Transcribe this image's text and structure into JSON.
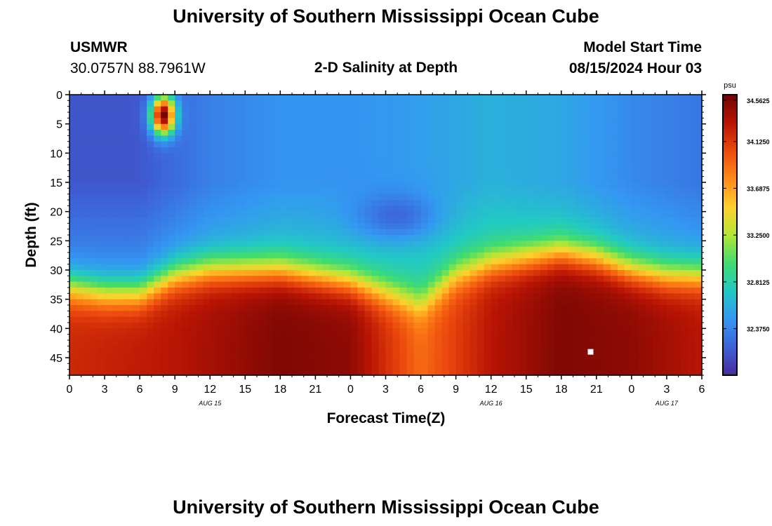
{
  "header": {
    "title": "University of Southern Mississippi Ocean Cube",
    "station": "USMWR",
    "coords": "30.0757N  88.7961W",
    "subtitle": "2-D Salinity at Depth",
    "model_start_label": "Model Start Time",
    "model_start_value": "08/15/2024 Hour 03"
  },
  "footer": {
    "title": "University of Southern Mississippi Ocean Cube"
  },
  "chart_data": {
    "type": "heatmap",
    "title": "2-D Salinity at Depth",
    "xlabel": "Forecast Time(Z)",
    "ylabel": "Depth (ft)",
    "x_tick_labels": [
      "0",
      "3",
      "6",
      "9",
      "12",
      "15",
      "18",
      "21",
      "0",
      "3",
      "6",
      "9",
      "12",
      "15",
      "18",
      "21",
      "0",
      "3",
      "6"
    ],
    "date_labels": [
      {
        "label": "AUG 15",
        "at_hour": 12
      },
      {
        "label": "AUG 16",
        "at_hour": 36
      },
      {
        "label": "AUG 17",
        "at_hour": 51
      }
    ],
    "xlim_hours": [
      0,
      54
    ],
    "y_ticks": [
      0,
      5,
      10,
      15,
      20,
      25,
      30,
      35,
      40,
      45
    ],
    "ylim": [
      0,
      48
    ],
    "y_inverted": true,
    "colorbar": {
      "unit": "psu",
      "min": 31.94,
      "max": 34.5625,
      "tick_labels": [
        "34.5625",
        "34.1250",
        "33.6875",
        "33.2500",
        "32.8125",
        "32.3750"
      ],
      "colors": [
        "#4a2a9c",
        "#3d62d8",
        "#3497f2",
        "#22c9c4",
        "#40dc70",
        "#b4e636",
        "#ffd02c",
        "#ff8a18",
        "#ec4a0e",
        "#b81404",
        "#6e0404"
      ]
    },
    "halocline_depth_ft": [
      {
        "hour": 0,
        "depth": 33
      },
      {
        "hour": 3,
        "depth": 34
      },
      {
        "hour": 6,
        "depth": 34
      },
      {
        "hour": 9,
        "depth": 31
      },
      {
        "hour": 12,
        "depth": 30
      },
      {
        "hour": 15,
        "depth": 30
      },
      {
        "hour": 18,
        "depth": 30
      },
      {
        "hour": 21,
        "depth": 31
      },
      {
        "hour": 24,
        "depth": 32
      },
      {
        "hour": 27,
        "depth": 34
      },
      {
        "hour": 30,
        "depth": 36
      },
      {
        "hour": 33,
        "depth": 31
      },
      {
        "hour": 36,
        "depth": 29
      },
      {
        "hour": 39,
        "depth": 28
      },
      {
        "hour": 42,
        "depth": 27
      },
      {
        "hour": 45,
        "depth": 28
      },
      {
        "hour": 48,
        "depth": 30
      },
      {
        "hour": 51,
        "depth": 31
      },
      {
        "hour": 54,
        "depth": 31
      }
    ],
    "surface_salinity_psu": [
      {
        "hour": 0,
        "psu": 32.15
      },
      {
        "hour": 6,
        "psu": 32.15
      },
      {
        "hour": 12,
        "psu": 32.35
      },
      {
        "hour": 18,
        "psu": 32.45
      },
      {
        "hour": 24,
        "psu": 32.45
      },
      {
        "hour": 30,
        "psu": 32.5
      },
      {
        "hour": 36,
        "psu": 32.6
      },
      {
        "hour": 42,
        "psu": 32.55
      },
      {
        "hour": 48,
        "psu": 32.4
      },
      {
        "hour": 54,
        "psu": 32.3
      }
    ],
    "bottom_salinity_psu": [
      {
        "hour": 0,
        "psu": 34.2
      },
      {
        "hour": 9,
        "psu": 34.3
      },
      {
        "hour": 18,
        "psu": 34.5
      },
      {
        "hour": 24,
        "psu": 34.45
      },
      {
        "hour": 30,
        "psu": 33.9
      },
      {
        "hour": 36,
        "psu": 34.3
      },
      {
        "hour": 42,
        "psu": 34.5
      },
      {
        "hour": 48,
        "psu": 34.45
      },
      {
        "hour": 54,
        "psu": 34.3
      }
    ],
    "high_salinity_spot": {
      "hour": 8,
      "depth_from": 0,
      "depth_to": 7,
      "psu": 34.56
    },
    "low_salinity_patch": {
      "hour": 28,
      "depth": 21,
      "psu": 32.0
    },
    "marker": {
      "hour": 44.5,
      "depth": 44
    }
  }
}
